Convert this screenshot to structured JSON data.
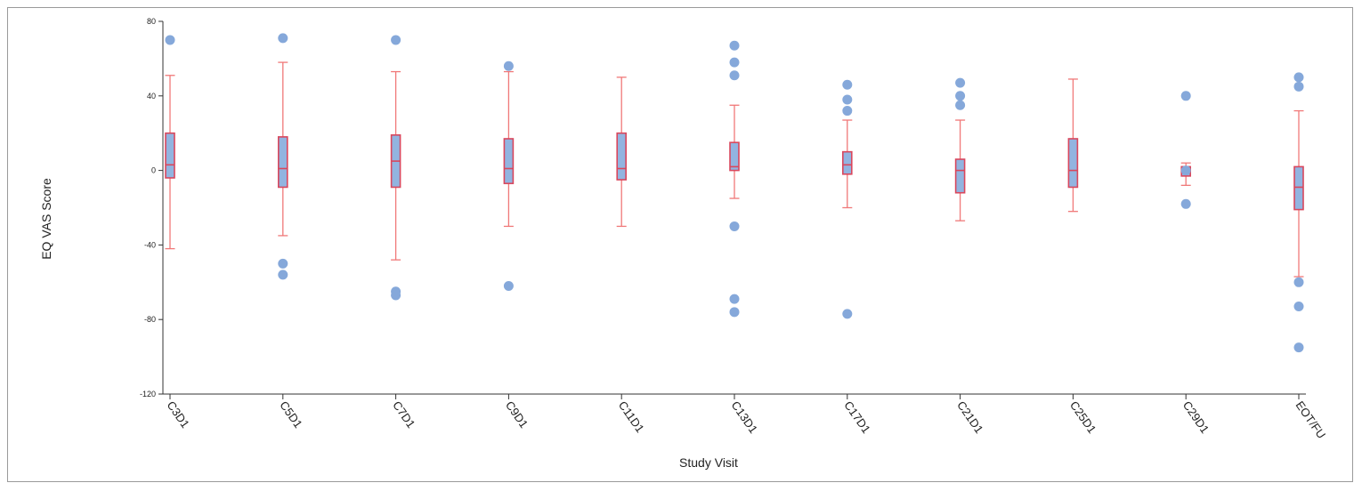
{
  "chart_data": {
    "type": "box",
    "title": "",
    "xlabel": "Study Visit",
    "ylabel": "EQ VAS Score",
    "ylim": [
      -120,
      80
    ],
    "yticks": [
      80,
      40,
      0,
      -40,
      -80,
      -120
    ],
    "grid": false,
    "categories": [
      "C3D1",
      "C5D1",
      "C7D1",
      "C9D1",
      "C11D1",
      "C13D1",
      "C17D1",
      "C21D1",
      "C25D1",
      "C29D1",
      "EOT/FU"
    ],
    "boxes": [
      {
        "whisker_low": -42,
        "q1": -4,
        "median": 3,
        "q3": 20,
        "whisker_high": 51,
        "outliers": [
          70
        ]
      },
      {
        "whisker_low": -35,
        "q1": -9,
        "median": 1,
        "q3": 18,
        "whisker_high": 58,
        "outliers": [
          71,
          -50,
          -56
        ]
      },
      {
        "whisker_low": -48,
        "q1": -9,
        "median": 5,
        "q3": 19,
        "whisker_high": 53,
        "outliers": [
          70,
          -65,
          -67
        ]
      },
      {
        "whisker_low": -30,
        "q1": -7,
        "median": 1,
        "q3": 17,
        "whisker_high": 53,
        "outliers": [
          56,
          -62
        ]
      },
      {
        "whisker_low": -30,
        "q1": -5,
        "median": 1,
        "q3": 20,
        "whisker_high": 50,
        "outliers": []
      },
      {
        "whisker_low": -15,
        "q1": 0,
        "median": 2,
        "q3": 15,
        "whisker_high": 35,
        "outliers": [
          67,
          58,
          51,
          -30,
          -69,
          -76
        ]
      },
      {
        "whisker_low": -20,
        "q1": -2,
        "median": 3,
        "q3": 10,
        "whisker_high": 27,
        "outliers": [
          46,
          38,
          32,
          -77
        ]
      },
      {
        "whisker_low": -27,
        "q1": -12,
        "median": 0,
        "q3": 6,
        "whisker_high": 27,
        "outliers": [
          47,
          40,
          35
        ]
      },
      {
        "whisker_low": -22,
        "q1": -9,
        "median": 0,
        "q3": 17,
        "whisker_high": 49,
        "outliers": []
      },
      {
        "whisker_low": -8,
        "q1": -3,
        "median": 1,
        "q3": 2,
        "whisker_high": 4,
        "outliers": [
          40,
          -18,
          0
        ]
      },
      {
        "whisker_low": -57,
        "q1": -21,
        "median": -9,
        "q3": 2,
        "whisker_high": 32,
        "outliers": [
          50,
          45,
          -60,
          -73,
          -95
        ]
      }
    ],
    "colors": {
      "box_fill": "#92b4e0",
      "box_stroke": "#d9475d",
      "whisker": "#f07878",
      "outlier": "#85a8da",
      "axis": "#333333"
    }
  }
}
